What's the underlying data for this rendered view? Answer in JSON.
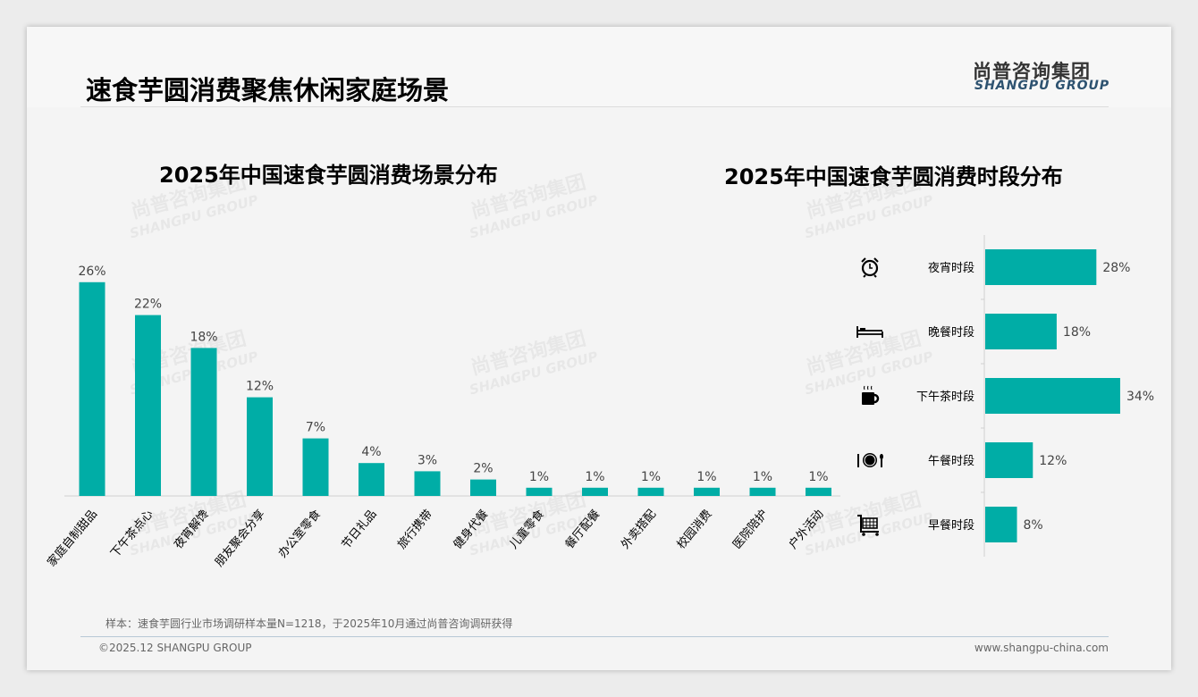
{
  "header": {
    "title": "速食芋圆消费聚焦休闲家庭场景",
    "logo_cn": "尚普咨询集团",
    "logo_en": "SHANGPU GROUP"
  },
  "watermark": {
    "cn": "尚普咨询集团",
    "en": "SHANGPU GROUP"
  },
  "colors": {
    "bar": "#00ADA6"
  },
  "chart_data": [
    {
      "type": "bar",
      "title": "2025年中国速食芋圆消费场景分布",
      "unit": "%",
      "categories": [
        "家庭自制甜品",
        "下午茶点心",
        "夜宵解馋",
        "朋友聚会分享",
        "办公室零食",
        "节日礼品",
        "旅行携带",
        "健身代餐",
        "儿童零食",
        "餐厅配餐",
        "外卖搭配",
        "校园消费",
        "医院陪护",
        "户外活动"
      ],
      "values": [
        26,
        22,
        18,
        12,
        7,
        4,
        3,
        2,
        1,
        1,
        1,
        1,
        1,
        1
      ],
      "labels": [
        "26%",
        "22%",
        "18%",
        "12%",
        "7%",
        "4%",
        "3%",
        "2%",
        "1%",
        "1%",
        "1%",
        "1%",
        "1%",
        "1%"
      ],
      "ylim": [
        0,
        30
      ]
    },
    {
      "type": "bar",
      "orientation": "horizontal",
      "title": "2025年中国速食芋圆消费时段分布",
      "unit": "%",
      "categories": [
        "夜宵时段",
        "晚餐时段",
        "下午茶时段",
        "午餐时段",
        "早餐时段"
      ],
      "icons": [
        "alarm-clock-icon",
        "bed-icon",
        "coffee-mug-icon",
        "plate-cutlery-icon",
        "shopping-cart-icon"
      ],
      "values": [
        28,
        18,
        34,
        12,
        8
      ],
      "labels": [
        "28%",
        "18%",
        "34%",
        "12%",
        "8%"
      ],
      "xlim": [
        0,
        40
      ]
    }
  ],
  "footer": {
    "note": "样本：速食芋圆行业市场调研样本量N=1218，于2025年10月通过尚普咨询调研获得",
    "copyright": "©2025.12 SHANGPU GROUP",
    "website": "www.shangpu-china.com"
  }
}
